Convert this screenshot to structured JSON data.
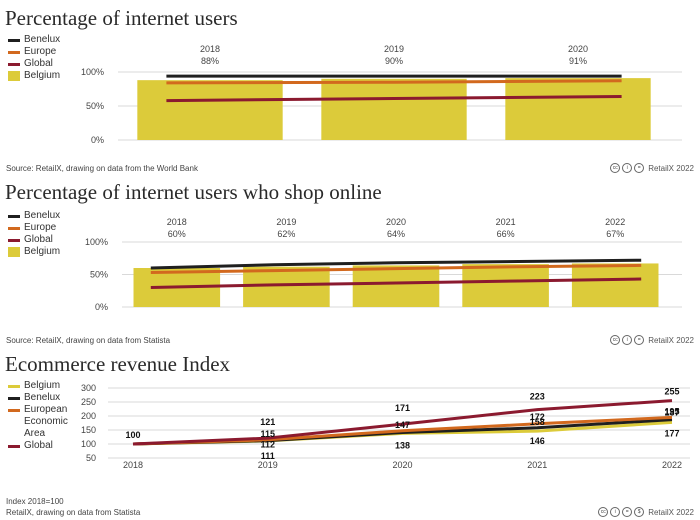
{
  "chart_data": [
    {
      "type": "bar",
      "title": "Percentage of internet users",
      "categories": [
        "2018",
        "2019",
        "2020"
      ],
      "bar_series": {
        "name": "Belgium",
        "values": [
          88,
          90,
          91
        ]
      },
      "value_labels": [
        "88%",
        "90%",
        "91%"
      ],
      "line_series": [
        {
          "name": "Benelux",
          "values": [
            94,
            94,
            94
          ]
        },
        {
          "name": "Europe",
          "values": [
            84,
            85,
            87
          ]
        },
        {
          "name": "Global",
          "values": [
            58,
            61,
            64
          ]
        }
      ],
      "yaxis": {
        "ticks": [
          0,
          50,
          100
        ],
        "tick_labels": [
          "0%",
          "50%",
          "100%"
        ],
        "ylim": [
          0,
          100
        ]
      },
      "legend": [
        "Benelux",
        "Europe",
        "Global",
        "Belgium"
      ],
      "source": "Source: RetailX, drawing on data from the World Bank"
    },
    {
      "type": "bar",
      "title": "Percentage of internet users who shop online",
      "categories": [
        "2018",
        "2019",
        "2020",
        "2021",
        "2022"
      ],
      "bar_series": {
        "name": "Belgium",
        "values": [
          60,
          62,
          64,
          66,
          67
        ]
      },
      "value_labels": [
        "60%",
        "62%",
        "64%",
        "66%",
        "67%"
      ],
      "line_series": [
        {
          "name": "Benelux",
          "values": [
            60,
            65,
            68,
            70,
            72
          ]
        },
        {
          "name": "Europe",
          "values": [
            53,
            56,
            59,
            62,
            64
          ]
        },
        {
          "name": "Global",
          "values": [
            30,
            34,
            37,
            40,
            43
          ]
        }
      ],
      "yaxis": {
        "ticks": [
          0,
          50,
          100
        ],
        "tick_labels": [
          "0%",
          "50%",
          "100%"
        ],
        "ylim": [
          0,
          100
        ]
      },
      "legend": [
        "Benelux",
        "Europe",
        "Global",
        "Belgium"
      ],
      "source": "Source: RetailX, drawing on data from Statista"
    },
    {
      "type": "line",
      "title": "Ecommerce revenue Index",
      "x": [
        "2018",
        "2019",
        "2020",
        "2021",
        "2022"
      ],
      "series": [
        {
          "name": "Belgium",
          "values": [
            100,
            111,
            138,
            146,
            177
          ]
        },
        {
          "name": "Benelux",
          "values": [
            100,
            112,
            141,
            158,
            187
          ]
        },
        {
          "name": "European Economic Area",
          "values": [
            100,
            115,
            147,
            172,
            195
          ]
        },
        {
          "name": "Global",
          "values": [
            100,
            121,
            171,
            223,
            255
          ]
        }
      ],
      "data_labels": [
        [
          "100",
          "",
          "",
          "",
          ""
        ],
        [
          "111",
          "112",
          "115",
          "121"
        ],
        [
          "138",
          "147",
          "171"
        ],
        [
          "146",
          "158",
          "172",
          "223"
        ],
        [
          "177",
          "187",
          "195",
          "255"
        ]
      ],
      "yaxis": {
        "ticks": [
          50,
          100,
          150,
          200,
          250,
          300
        ],
        "tick_labels": [
          "50",
          "100",
          "150",
          "200",
          "250",
          "300"
        ],
        "ylim": [
          50,
          300
        ]
      },
      "legend": [
        "Belgium",
        "Benelux",
        "European Economic Area",
        "Global"
      ],
      "note": "Index 2018=100",
      "source": "RetailX, drawing on data from Statista"
    }
  ],
  "legend_labels": {
    "benelux": "Benelux",
    "europe": "Europe",
    "global": "Global",
    "belgium": "Belgium",
    "eea_line1": "European",
    "eea_line2": "Economic",
    "eea_line3": "Area"
  },
  "brand": {
    "text": "RetailX 2022",
    "cc_icons": [
      "cc",
      "i",
      "=",
      "$"
    ]
  },
  "colors": {
    "belgium": "#DCCB3A",
    "benelux": "#1F1F1F",
    "europe": "#D2691E",
    "global": "#8B1A2F",
    "grid": "#D9D9D9",
    "axis_text": "#444444"
  }
}
